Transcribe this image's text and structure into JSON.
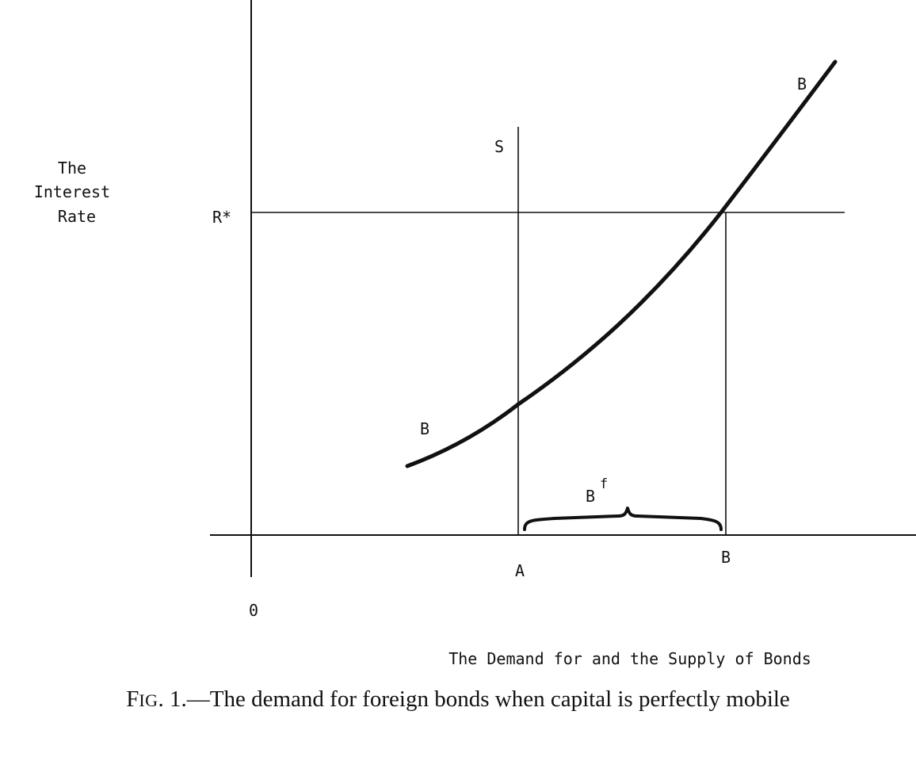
{
  "y_axis_label_lines": [
    "The",
    "Interest",
    "Rate"
  ],
  "rate_label": "R*",
  "supply_label": "S",
  "curve_label": "B",
  "origin_label": "0",
  "tick_a_label": "A",
  "tick_b_label": "B",
  "brace_label": "B",
  "brace_label_sup": "f",
  "x_axis_label": "The Demand for and the Supply of Bonds",
  "caption": {
    "fig_prefix": "Fig",
    "fig_number": ". 1.",
    "text": "—The demand for foreign bonds when capital is perfectly mobile"
  }
}
